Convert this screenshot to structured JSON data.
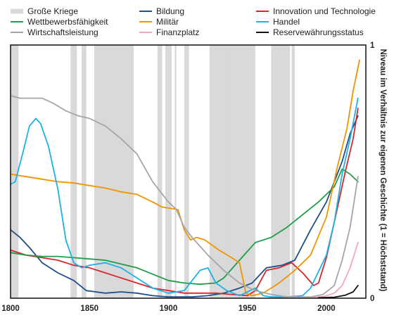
{
  "chart_data": {
    "type": "line",
    "title": "",
    "xlabel": "",
    "ylabel": "Niveau im Verhältnis zur eigenen Geschichte (1 = Höchststand)",
    "xlim": [
      1800,
      2025
    ],
    "ylim": [
      0,
      1
    ],
    "x_ticks": [
      "1800",
      "1850",
      "1900",
      "1950",
      "2000"
    ],
    "y_ticks": [
      "0",
      "1"
    ],
    "legend_position": "top",
    "wars_label": "Große Kriege",
    "wars_color": "#d9d9d9",
    "wars": [
      [
        1800,
        1805
      ],
      [
        1838,
        1842
      ],
      [
        1845,
        1848
      ],
      [
        1853,
        1878
      ],
      [
        1893,
        1896
      ],
      [
        1898,
        1902
      ],
      [
        1904,
        1905
      ],
      [
        1910,
        1913
      ],
      [
        1926,
        1937
      ],
      [
        1937,
        1945
      ],
      [
        1945,
        1955
      ],
      [
        1965,
        1977
      ],
      [
        1978,
        1980
      ]
    ],
    "series": [
      {
        "name": "Bildung",
        "color": "#1f4e8c",
        "points": [
          [
            1800,
            0.27
          ],
          [
            1806,
            0.24
          ],
          [
            1812,
            0.2
          ],
          [
            1820,
            0.14
          ],
          [
            1830,
            0.1
          ],
          [
            1840,
            0.07
          ],
          [
            1848,
            0.03
          ],
          [
            1860,
            0.02
          ],
          [
            1870,
            0.025
          ],
          [
            1880,
            0.02
          ],
          [
            1890,
            0.01
          ],
          [
            1900,
            0.005
          ],
          [
            1915,
            0.005
          ],
          [
            1925,
            0.01
          ],
          [
            1935,
            0.02
          ],
          [
            1945,
            0.04
          ],
          [
            1953,
            0.06
          ],
          [
            1962,
            0.12
          ],
          [
            1972,
            0.13
          ],
          [
            1980,
            0.15
          ],
          [
            1990,
            0.27
          ],
          [
            2000,
            0.38
          ],
          [
            2010,
            0.54
          ],
          [
            2015,
            0.65
          ],
          [
            2020,
            0.72
          ]
        ]
      },
      {
        "name": "Innovation und Technologie",
        "color": "#d7262e",
        "points": [
          [
            1800,
            0.19
          ],
          [
            1810,
            0.17
          ],
          [
            1820,
            0.16
          ],
          [
            1830,
            0.15
          ],
          [
            1840,
            0.13
          ],
          [
            1850,
            0.12
          ],
          [
            1860,
            0.1
          ],
          [
            1870,
            0.08
          ],
          [
            1880,
            0.06
          ],
          [
            1890,
            0.04
          ],
          [
            1900,
            0.03
          ],
          [
            1910,
            0.02
          ],
          [
            1920,
            0.02
          ],
          [
            1930,
            0.02
          ],
          [
            1940,
            0.015
          ],
          [
            1950,
            0.01
          ],
          [
            1955,
            0.03
          ],
          [
            1962,
            0.11
          ],
          [
            1970,
            0.12
          ],
          [
            1978,
            0.14
          ],
          [
            1985,
            0.1
          ],
          [
            1992,
            0.05
          ],
          [
            1995,
            0.06
          ],
          [
            2000,
            0.16
          ],
          [
            2005,
            0.3
          ],
          [
            2012,
            0.5
          ],
          [
            2017,
            0.63
          ],
          [
            2020,
            0.75
          ]
        ]
      },
      {
        "name": "Wettbewerbsfähigkeit",
        "color": "#1e9e48",
        "points": [
          [
            1800,
            0.18
          ],
          [
            1810,
            0.17
          ],
          [
            1820,
            0.165
          ],
          [
            1830,
            0.165
          ],
          [
            1840,
            0.16
          ],
          [
            1850,
            0.155
          ],
          [
            1860,
            0.15
          ],
          [
            1870,
            0.135
          ],
          [
            1880,
            0.12
          ],
          [
            1890,
            0.095
          ],
          [
            1900,
            0.07
          ],
          [
            1910,
            0.06
          ],
          [
            1920,
            0.055
          ],
          [
            1930,
            0.06
          ],
          [
            1935,
            0.08
          ],
          [
            1945,
            0.15
          ],
          [
            1955,
            0.22
          ],
          [
            1965,
            0.24
          ],
          [
            1975,
            0.28
          ],
          [
            1985,
            0.33
          ],
          [
            1995,
            0.38
          ],
          [
            2000,
            0.41
          ],
          [
            2005,
            0.44
          ],
          [
            2010,
            0.51
          ],
          [
            2015,
            0.49
          ],
          [
            2020,
            0.46
          ]
        ]
      },
      {
        "name": "Militär",
        "color": "#f29400",
        "points": [
          [
            1800,
            0.49
          ],
          [
            1810,
            0.48
          ],
          [
            1820,
            0.47
          ],
          [
            1830,
            0.46
          ],
          [
            1840,
            0.455
          ],
          [
            1850,
            0.445
          ],
          [
            1860,
            0.435
          ],
          [
            1870,
            0.42
          ],
          [
            1880,
            0.41
          ],
          [
            1890,
            0.38
          ],
          [
            1896,
            0.36
          ],
          [
            1906,
            0.35
          ],
          [
            1910,
            0.27
          ],
          [
            1914,
            0.23
          ],
          [
            1918,
            0.24
          ],
          [
            1923,
            0.23
          ],
          [
            1932,
            0.19
          ],
          [
            1940,
            0.16
          ],
          [
            1945,
            0.14
          ],
          [
            1949,
            0.02
          ],
          [
            1953,
            0.01
          ],
          [
            1960,
            0.02
          ],
          [
            1970,
            0.06
          ],
          [
            1980,
            0.11
          ],
          [
            1990,
            0.17
          ],
          [
            2000,
            0.32
          ],
          [
            2007,
            0.52
          ],
          [
            2013,
            0.67
          ],
          [
            2017,
            0.82
          ],
          [
            2021,
            0.94
          ]
        ]
      },
      {
        "name": "Handel",
        "color": "#1bb2e6",
        "points": [
          [
            1800,
            0.45
          ],
          [
            1803,
            0.46
          ],
          [
            1808,
            0.58
          ],
          [
            1812,
            0.68
          ],
          [
            1816,
            0.71
          ],
          [
            1819,
            0.69
          ],
          [
            1824,
            0.6
          ],
          [
            1830,
            0.43
          ],
          [
            1835,
            0.23
          ],
          [
            1840,
            0.14
          ],
          [
            1845,
            0.12
          ],
          [
            1850,
            0.13
          ],
          [
            1860,
            0.14
          ],
          [
            1870,
            0.12
          ],
          [
            1880,
            0.08
          ],
          [
            1890,
            0.04
          ],
          [
            1900,
            0.02
          ],
          [
            1910,
            0.03
          ],
          [
            1920,
            0.11
          ],
          [
            1925,
            0.12
          ],
          [
            1930,
            0.06
          ],
          [
            1937,
            0.03
          ],
          [
            1945,
            0.01
          ],
          [
            1955,
            0.04
          ],
          [
            1960,
            0.01
          ],
          [
            1965,
            0.005
          ],
          [
            1975,
            0.005
          ],
          [
            1985,
            0.01
          ],
          [
            1990,
            0.04
          ],
          [
            2000,
            0.17
          ],
          [
            2005,
            0.3
          ],
          [
            2010,
            0.49
          ],
          [
            2015,
            0.63
          ],
          [
            2020,
            0.79
          ]
        ]
      },
      {
        "name": "Wirtschaftsleistung",
        "color": "#a6a6a6",
        "points": [
          [
            1800,
            0.8
          ],
          [
            1806,
            0.79
          ],
          [
            1812,
            0.79
          ],
          [
            1820,
            0.79
          ],
          [
            1827,
            0.77
          ],
          [
            1835,
            0.74
          ],
          [
            1843,
            0.72
          ],
          [
            1850,
            0.71
          ],
          [
            1860,
            0.68
          ],
          [
            1870,
            0.63
          ],
          [
            1880,
            0.57
          ],
          [
            1890,
            0.46
          ],
          [
            1900,
            0.38
          ],
          [
            1905,
            0.35
          ],
          [
            1910,
            0.28
          ],
          [
            1915,
            0.24
          ],
          [
            1925,
            0.17
          ],
          [
            1935,
            0.11
          ],
          [
            1945,
            0.06
          ],
          [
            1955,
            0.03
          ],
          [
            1965,
            0.015
          ],
          [
            1975,
            0.005
          ],
          [
            1990,
            0.005
          ],
          [
            1998,
            0.015
          ],
          [
            2005,
            0.05
          ],
          [
            2010,
            0.15
          ],
          [
            2015,
            0.28
          ],
          [
            2020,
            0.48
          ]
        ]
      },
      {
        "name": "Finanzplatz",
        "color": "#f4a7b9",
        "points": [
          [
            1990,
            0.002
          ],
          [
            1998,
            0.006
          ],
          [
            2005,
            0.02
          ],
          [
            2010,
            0.05
          ],
          [
            2015,
            0.12
          ],
          [
            2020,
            0.22
          ]
        ]
      },
      {
        "name": "Reservewährungsstatus",
        "color": "#111111",
        "points": [
          [
            1995,
            0.002
          ],
          [
            2005,
            0.004
          ],
          [
            2012,
            0.012
          ],
          [
            2017,
            0.025
          ],
          [
            2020,
            0.05
          ]
        ]
      }
    ]
  }
}
